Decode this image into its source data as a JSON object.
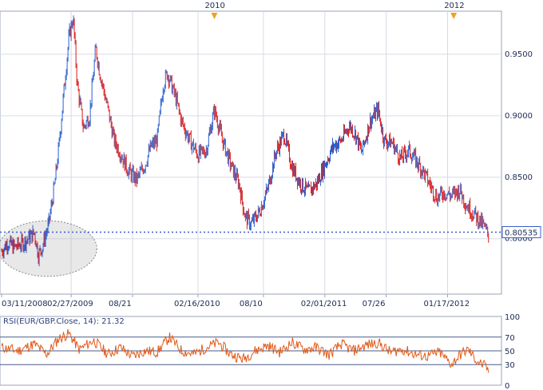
{
  "chart_data": [
    {
      "type": "candlestick",
      "title": "",
      "instrument": "EUR/GBP",
      "top_markers": [
        "2010",
        "2012"
      ],
      "x_tick_labels": [
        "03/11/2008",
        "02/27/2009",
        "08/21",
        "02/16/2010",
        "08/10",
        "02/01/2011",
        "07/26",
        "01/17/2012"
      ],
      "y_tick_labels": [
        "0.9500",
        "0.9000",
        "0.8500",
        "0.8000"
      ],
      "ylim": [
        0.755,
        0.985
      ],
      "current_price": 0.80535,
      "current_price_label": "0.80535",
      "price_path": [
        [
          0,
          0.79
        ],
        [
          0.03,
          0.797
        ],
        [
          0.06,
          0.793
        ],
        [
          0.1,
          0.796
        ],
        [
          0.13,
          0.8
        ],
        [
          0.16,
          0.805
        ],
        [
          0.18,
          0.787
        ],
        [
          0.2,
          0.794
        ],
        [
          0.23,
          0.812
        ],
        [
          0.26,
          0.845
        ],
        [
          0.28,
          0.875
        ],
        [
          0.31,
          0.93
        ],
        [
          0.33,
          0.965
        ],
        [
          0.35,
          0.98
        ],
        [
          0.37,
          0.925
        ],
        [
          0.4,
          0.89
        ],
        [
          0.43,
          0.9
        ],
        [
          0.46,
          0.955
        ],
        [
          0.48,
          0.935
        ],
        [
          0.52,
          0.905
        ],
        [
          0.55,
          0.88
        ],
        [
          0.58,
          0.87
        ],
        [
          0.62,
          0.855
        ],
        [
          0.66,
          0.848
        ],
        [
          0.7,
          0.86
        ],
        [
          0.73,
          0.875
        ],
        [
          0.76,
          0.88
        ],
        [
          0.79,
          0.925
        ],
        [
          0.81,
          0.935
        ],
        [
          0.85,
          0.915
        ],
        [
          0.88,
          0.895
        ],
        [
          0.92,
          0.88
        ],
        [
          0.96,
          0.868
        ],
        [
          1.0,
          0.872
        ],
        [
          1.04,
          0.905
        ],
        [
          1.08,
          0.88
        ],
        [
          1.12,
          0.86
        ],
        [
          1.16,
          0.845
        ],
        [
          1.19,
          0.818
        ],
        [
          1.22,
          0.812
        ],
        [
          1.26,
          0.822
        ],
        [
          1.3,
          0.84
        ],
        [
          1.34,
          0.87
        ],
        [
          1.38,
          0.885
        ],
        [
          1.42,
          0.858
        ],
        [
          1.46,
          0.845
        ],
        [
          1.5,
          0.838
        ],
        [
          1.54,
          0.845
        ],
        [
          1.58,
          0.86
        ],
        [
          1.62,
          0.875
        ],
        [
          1.66,
          0.88
        ],
        [
          1.7,
          0.892
        ],
        [
          1.73,
          0.885
        ],
        [
          1.76,
          0.87
        ],
        [
          1.8,
          0.895
        ],
        [
          1.84,
          0.905
        ],
        [
          1.87,
          0.88
        ],
        [
          1.91,
          0.878
        ],
        [
          1.95,
          0.865
        ],
        [
          1.99,
          0.872
        ],
        [
          2.02,
          0.865
        ],
        [
          2.06,
          0.855
        ],
        [
          2.1,
          0.842
        ],
        [
          2.13,
          0.833
        ],
        [
          2.16,
          0.838
        ],
        [
          2.2,
          0.835
        ],
        [
          2.24,
          0.84
        ],
        [
          2.27,
          0.828
        ],
        [
          2.31,
          0.82
        ],
        [
          2.35,
          0.812
        ],
        [
          2.38,
          0.803
        ]
      ],
      "top_marker_x": [
        1.04,
        2.21
      ],
      "ellipse_x_range": [
        0,
        0.45
      ],
      "ellipse_y_range": [
        0.772,
        0.812
      ]
    },
    {
      "type": "line",
      "series_label": "RSI(EUR/GBP.Close, 14): 21.32",
      "ylim": [
        0,
        100
      ],
      "y_tick_labels": [
        "100",
        "70",
        "50",
        "30",
        "0"
      ],
      "reference_lines": [
        70,
        50,
        30
      ],
      "rsi_path": [
        [
          0,
          55
        ],
        [
          0.08,
          50
        ],
        [
          0.16,
          60
        ],
        [
          0.22,
          45
        ],
        [
          0.28,
          68
        ],
        [
          0.33,
          75
        ],
        [
          0.38,
          52
        ],
        [
          0.45,
          65
        ],
        [
          0.52,
          45
        ],
        [
          0.58,
          55
        ],
        [
          0.64,
          42
        ],
        [
          0.7,
          50
        ],
        [
          0.76,
          48
        ],
        [
          0.82,
          70
        ],
        [
          0.88,
          50
        ],
        [
          0.94,
          45
        ],
        [
          1.0,
          55
        ],
        [
          1.06,
          62
        ],
        [
          1.12,
          45
        ],
        [
          1.18,
          38
        ],
        [
          1.24,
          50
        ],
        [
          1.3,
          58
        ],
        [
          1.36,
          48
        ],
        [
          1.42,
          62
        ],
        [
          1.48,
          52
        ],
        [
          1.54,
          55
        ],
        [
          1.6,
          44
        ],
        [
          1.66,
          60
        ],
        [
          1.72,
          50
        ],
        [
          1.78,
          58
        ],
        [
          1.84,
          62
        ],
        [
          1.9,
          48
        ],
        [
          1.96,
          52
        ],
        [
          2.02,
          45
        ],
        [
          2.08,
          42
        ],
        [
          2.14,
          48
        ],
        [
          2.2,
          30
        ],
        [
          2.24,
          44
        ],
        [
          2.28,
          52
        ],
        [
          2.32,
          36
        ],
        [
          2.36,
          28
        ],
        [
          2.38,
          21.32
        ]
      ]
    }
  ]
}
